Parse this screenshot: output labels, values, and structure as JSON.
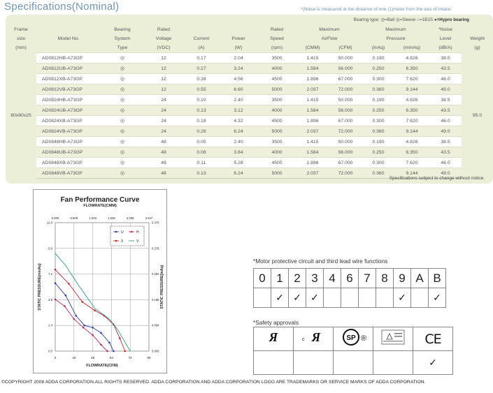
{
  "header": {
    "title": "Specifications(Nominal)",
    "note": "*(Noise is measured at the distance of one (1)meter from the axis of intake."
  },
  "bearing_type": {
    "label": "Bearing type:",
    "ball_label": "=Ball",
    "sleeve_label": "=Sleeve",
    "one_b1s_label": "=1B1S",
    "hypro_label": "=Hypro bearing"
  },
  "table": {
    "headers": {
      "frame_size": [
        "Frame",
        "size",
        "(mm)"
      ],
      "model": [
        "",
        "Model No.",
        ""
      ],
      "bearing": [
        "Bearing",
        "System",
        "Type"
      ],
      "voltage": [
        "Rated",
        "Voltage",
        "(VDC)"
      ],
      "current": [
        "",
        "Current",
        "(A)"
      ],
      "power": [
        "",
        "Power",
        "(W)"
      ],
      "speed": [
        "Rated",
        "Speed",
        "(rpm)"
      ],
      "airflow": [
        "Maximum",
        "AirFlow",
        "(CMM)",
        "(CFM)"
      ],
      "pressure": [
        "Maximum",
        "Pressure",
        "(InAq)",
        "(mmAq)"
      ],
      "noise": [
        "*Noise",
        "Level",
        "(dB/A)"
      ],
      "weight": [
        "",
        "Weight",
        "(g)"
      ]
    },
    "frame_size": "80x80x25",
    "weight": "95.0",
    "bearing_symbol": "◎",
    "rows": [
      [
        "AD0812HB-A73GP",
        "12",
        "0.17",
        "2.04",
        "3500",
        "1.415",
        "50.000",
        "0.190",
        "4.826",
        "38.5"
      ],
      [
        "AD0812UB-A73GP",
        "12",
        "0.27",
        "3.24",
        "4000",
        "1.584",
        "56.000",
        "0.250",
        "6.350",
        "43.5"
      ],
      [
        "AD0812XB-A73GP",
        "12",
        "0.38",
        "4.56",
        "4500",
        "1.896",
        "67.000",
        "0.300",
        "7.620",
        "46.0"
      ],
      [
        "AD0812VB-A73GP",
        "12",
        "0.55",
        "6.60",
        "5000",
        "2.037",
        "72.000",
        "0.360",
        "9.144",
        "49.0"
      ],
      [
        "AD0824HB-A73GP",
        "24",
        "0.10",
        "2.40",
        "3500",
        "1.415",
        "50.000",
        "0.190",
        "4.826",
        "38.5"
      ],
      [
        "AD0824UB-A73GP",
        "24",
        "0.13",
        "3.12",
        "4000",
        "1.584",
        "56.000",
        "0.250",
        "6.350",
        "43.5"
      ],
      [
        "AD0824XB-A73GP",
        "24",
        "0.18",
        "4.32",
        "4500",
        "1.896",
        "67.000",
        "0.300",
        "7.620",
        "46.0"
      ],
      [
        "AD0824VB-A73GP",
        "24",
        "0.26",
        "6.24",
        "5000",
        "2.037",
        "72.000",
        "0.360",
        "9.144",
        "49.0"
      ],
      [
        "AD0848HB-A73GP",
        "48",
        "0.05",
        "2.40",
        "3500",
        "1.415",
        "50.000",
        "0.190",
        "4.826",
        "38.5"
      ],
      [
        "AD0848UB-A73GP",
        "48",
        "0.08",
        "3.84",
        "4000",
        "1.584",
        "56.000",
        "0.250",
        "6.350",
        "43.5"
      ],
      [
        "AD0848XB-A73GP",
        "48",
        "0.11",
        "5.28",
        "4500",
        "1.896",
        "67.000",
        "0.300",
        "7.620",
        "46.0"
      ],
      [
        "AD0848VB-A73GP",
        "48",
        "0.13",
        "6.24",
        "5000",
        "2.037",
        "72.000",
        "0.360",
        "9.144",
        "49.0"
      ]
    ],
    "footnote": "Specifications subject to change without notice."
  },
  "chart_data": {
    "type": "line",
    "title": "Fan Performance Curve",
    "top_axis_label": "FLOWRATE(CMM)",
    "top_ticks": [
      "0.000",
      "0.509",
      "1.019",
      "1.528",
      "2.038",
      "2.547"
    ],
    "xlabel": "FLOWRATE(CFM)",
    "x_ticks": [
      "0",
      "18",
      "36",
      "54",
      "72",
      "90"
    ],
    "xlim": [
      0,
      90
    ],
    "ylabel": "STATIC PRESSURE(mmAq)",
    "y_ticks": [
      "0.0",
      "2.4",
      "4.8",
      "7.2",
      "9.6",
      "12.0"
    ],
    "ylim": [
      0,
      12
    ],
    "right_ylabel": "STATIC PRESSURE(InAq)",
    "right_ticks": [
      "0.000",
      "0.094",
      "0.188",
      "0.282",
      "0.376",
      "0.470"
    ],
    "grid": true,
    "legend_position": "top-right",
    "series": [
      {
        "name": "U",
        "color": "#2a3f9e",
        "marker": "circle",
        "x": [
          0,
          10,
          20,
          28,
          36,
          44,
          52,
          56
        ],
        "y": [
          6.35,
          5.2,
          3.3,
          2.4,
          2.2,
          1.7,
          0.8,
          0
        ]
      },
      {
        "name": "H",
        "color": "#c0246a",
        "marker": "circle",
        "x": [
          0,
          9,
          18,
          27,
          36,
          44,
          50
        ],
        "y": [
          4.83,
          4.2,
          3.0,
          2.2,
          1.5,
          0.6,
          0
        ]
      },
      {
        "name": "X",
        "color": "#c4262e",
        "marker": "circle",
        "x": [
          0,
          13,
          26,
          38,
          47,
          56,
          62,
          67
        ],
        "y": [
          7.62,
          6.3,
          4.6,
          3.8,
          3.3,
          2.5,
          1.2,
          0
        ]
      },
      {
        "name": "V",
        "color": "#2e9a8e",
        "marker": "none",
        "x": [
          0,
          10,
          22,
          38,
          52,
          60,
          66,
          72
        ],
        "y": [
          9.14,
          8.0,
          6.2,
          4.0,
          3.0,
          2.0,
          1.0,
          0
        ]
      }
    ]
  },
  "motor": {
    "title": "*Motor protective circuit and third lead wire functions",
    "codes": [
      "0",
      "1",
      "2",
      "3",
      "4",
      "6",
      "7",
      "8",
      "9",
      "A",
      "B"
    ],
    "checked": [
      "",
      "✓",
      "✓",
      "✓",
      "",
      "",
      "",
      "",
      "✓",
      "",
      "✓"
    ]
  },
  "safety": {
    "title": "*Safety approvals",
    "logos": [
      "ul-recognized-logo",
      "cul-recognized-logo",
      "csa-logo",
      "tuv-logo",
      "ce-logo"
    ],
    "ce_text": "CE",
    "csa_text": "SP",
    "registered_mark": "®",
    "checked": [
      "",
      "",
      "",
      "",
      "✓"
    ]
  },
  "footer": {
    "copyright": "©COPYRIGHT 2008 ADDA CORPORATION.ALL RIGHTS RESERVED. ADDA CORPORATION AND ADDA  CORPORATION LOGO ARE TRADEMARKS OR SERVICE MARKS OF ADDA CORPORATION."
  }
}
